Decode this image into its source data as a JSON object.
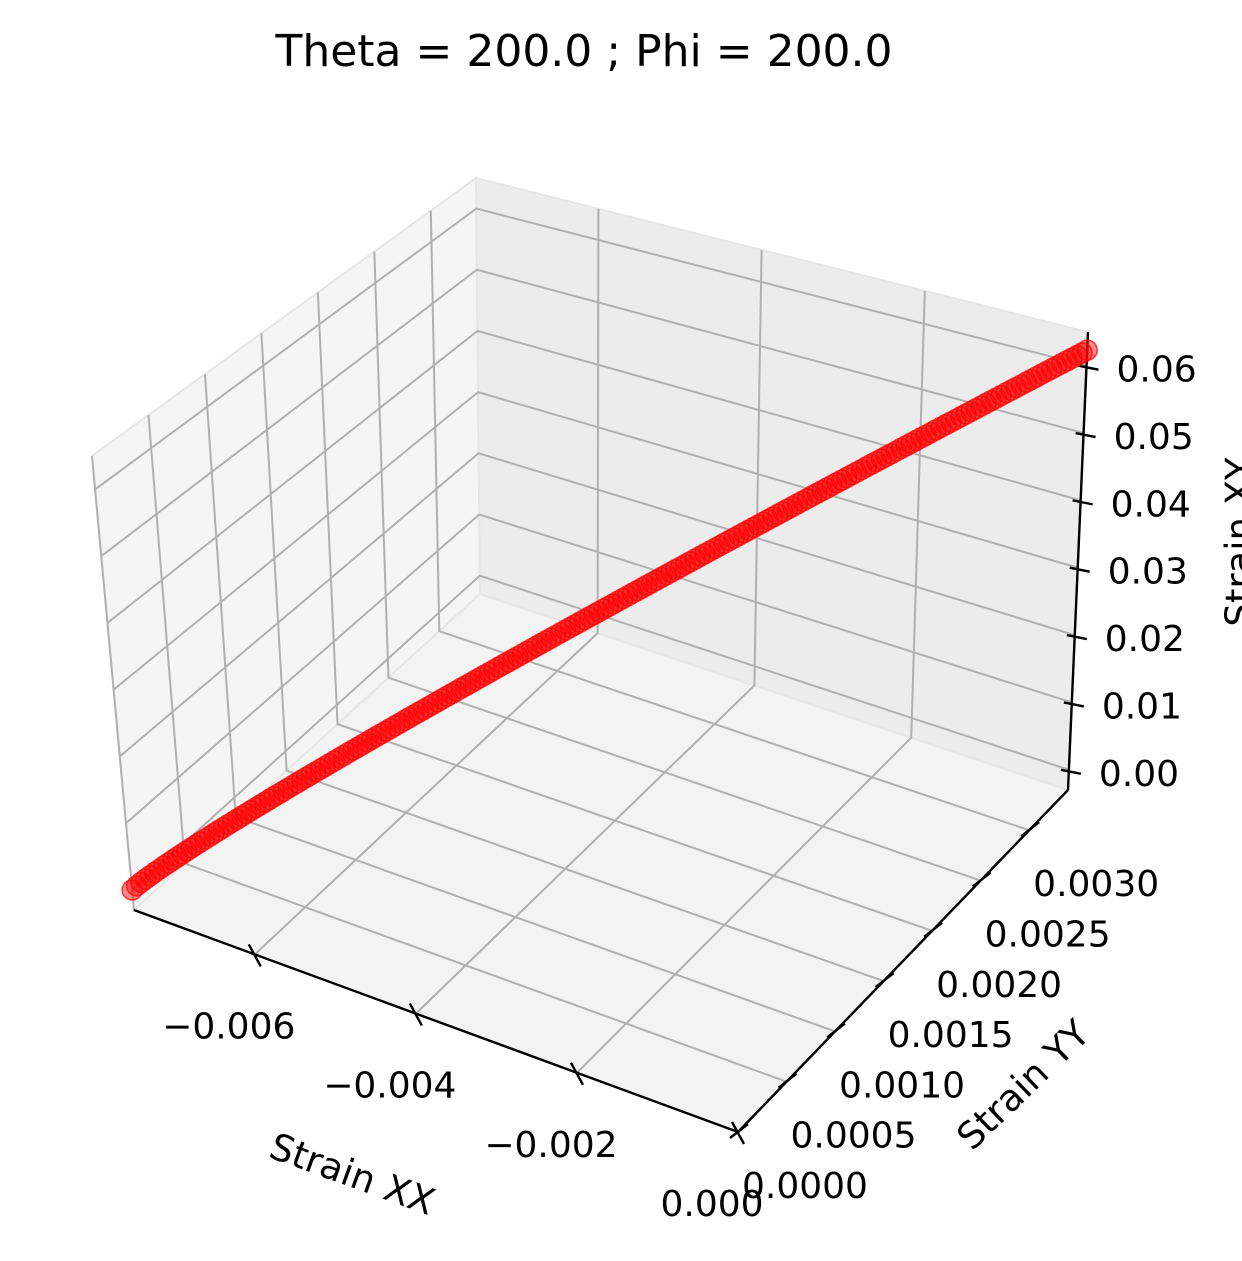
{
  "chart_data": {
    "type": "scatter",
    "projection": "3d",
    "title": "Theta = 200.0 ; Phi = 200.0",
    "xlabel": "Strain XX",
    "ylabel": "Strain YY",
    "zlabel": "Strain XY",
    "xlim": [
      -0.0075,
      0.0
    ],
    "ylim": [
      0.0,
      0.0034
    ],
    "zlim": [
      -0.003,
      0.065
    ],
    "x_ticks": [
      "−0.006",
      "−0.004",
      "−0.002",
      "0.000"
    ],
    "y_ticks": [
      "0.0000",
      "0.0005",
      "0.0010",
      "0.0015",
      "0.0020",
      "0.0025",
      "0.0030"
    ],
    "z_ticks": [
      "0.00",
      "0.01",
      "0.02",
      "0.03",
      "0.04",
      "0.05",
      "0.06"
    ],
    "grid": true,
    "marker_color": "#ff0000",
    "series": [
      {
        "x_range": [
          -0.0075,
          0.0
        ],
        "y_range": [
          0.0,
          0.0034
        ],
        "z_range": [
          0.0,
          0.0623
        ],
        "point_count": 200
      }
    ]
  }
}
